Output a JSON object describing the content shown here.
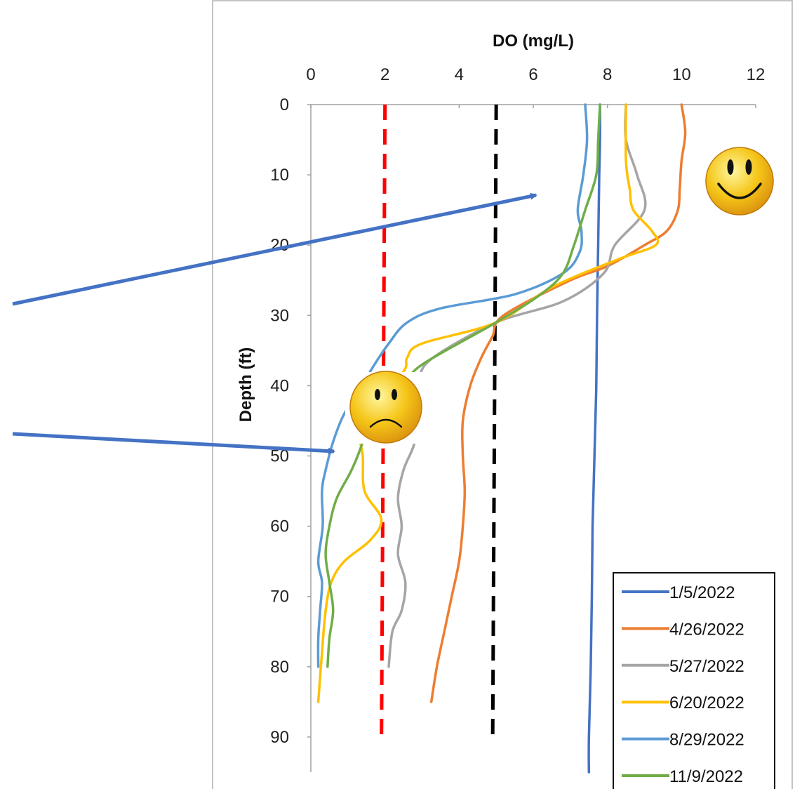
{
  "chart_data": {
    "type": "line",
    "xlabel": "DO (mg/L)",
    "ylabel": "Depth (ft)",
    "xlim": [
      0,
      12
    ],
    "ylim": [
      0,
      95
    ],
    "x_axis_position": "top",
    "y_axis_inverted": true,
    "xticks": [
      "0",
      "2",
      "4",
      "6",
      "8",
      "10",
      "12"
    ],
    "yticks": [
      "0",
      "10",
      "20",
      "30",
      "40",
      "50",
      "60",
      "70",
      "80",
      "90"
    ],
    "grid": false,
    "legend_position": "bottom-right",
    "reference_lines": [
      {
        "x": 2,
        "color": "#ff0000",
        "style": "dashed"
      },
      {
        "x": 5,
        "color": "#000000",
        "style": "dashed"
      }
    ],
    "series": [
      {
        "name": "1/5/2022",
        "color": "#4472c4",
        "points": [
          [
            7.8,
            0
          ],
          [
            7.8,
            5
          ],
          [
            7.78,
            10
          ],
          [
            7.75,
            20
          ],
          [
            7.72,
            30
          ],
          [
            7.7,
            40
          ],
          [
            7.65,
            50
          ],
          [
            7.6,
            60
          ],
          [
            7.58,
            70
          ],
          [
            7.55,
            80
          ],
          [
            7.5,
            90
          ],
          [
            7.5,
            95
          ]
        ]
      },
      {
        "name": "4/26/2022",
        "color": "#ed7d31",
        "points": [
          [
            10,
            0
          ],
          [
            10.1,
            4
          ],
          [
            10,
            8
          ],
          [
            9.95,
            12
          ],
          [
            9.9,
            15
          ],
          [
            9.6,
            18
          ],
          [
            9,
            20
          ],
          [
            8,
            23
          ],
          [
            7,
            25
          ],
          [
            5.2,
            30
          ],
          [
            4.9,
            33
          ],
          [
            4.6,
            36
          ],
          [
            4.3,
            40
          ],
          [
            4.1,
            45
          ],
          [
            4.1,
            50
          ],
          [
            4.15,
            55
          ],
          [
            4.1,
            60
          ],
          [
            4,
            65
          ],
          [
            3.8,
            70
          ],
          [
            3.6,
            75
          ],
          [
            3.4,
            80
          ],
          [
            3.25,
            85
          ]
        ]
      },
      {
        "name": "5/27/2022",
        "color": "#a5a5a5",
        "points": [
          [
            8.5,
            0
          ],
          [
            8.5,
            5
          ],
          [
            8.8,
            10
          ],
          [
            9,
            15
          ],
          [
            8.2,
            20
          ],
          [
            7.9,
            24
          ],
          [
            6.8,
            28
          ],
          [
            5,
            31
          ],
          [
            3.3,
            36
          ],
          [
            2.9,
            39
          ],
          [
            2.7,
            42
          ],
          [
            2.7,
            45
          ],
          [
            2.8,
            48
          ],
          [
            2.5,
            52
          ],
          [
            2.35,
            56
          ],
          [
            2.45,
            60
          ],
          [
            2.35,
            64
          ],
          [
            2.55,
            68
          ],
          [
            2.45,
            72
          ],
          [
            2.2,
            75
          ],
          [
            2.1,
            80
          ]
        ]
      },
      {
        "name": "6/20/2022",
        "color": "#ffc000",
        "points": [
          [
            8.5,
            0
          ],
          [
            8.5,
            8
          ],
          [
            8.6,
            12
          ],
          [
            8.7,
            15
          ],
          [
            9.2,
            18
          ],
          [
            9.3,
            20
          ],
          [
            8.3,
            22
          ],
          [
            6.5,
            26
          ],
          [
            5,
            31
          ],
          [
            3,
            34
          ],
          [
            2.6,
            36
          ],
          [
            2.5,
            38
          ],
          [
            1.7,
            43
          ],
          [
            1.3,
            46
          ],
          [
            1.4,
            50
          ],
          [
            1.45,
            55
          ],
          [
            1.9,
            59
          ],
          [
            1.6,
            62
          ],
          [
            0.9,
            65
          ],
          [
            0.55,
            68
          ],
          [
            0.4,
            72
          ],
          [
            0.3,
            78
          ],
          [
            0.2,
            85
          ]
        ]
      },
      {
        "name": "8/29/2022",
        "color": "#5b9bd5",
        "points": [
          [
            7.4,
            0
          ],
          [
            7.45,
            5
          ],
          [
            7.35,
            10
          ],
          [
            7.2,
            15
          ],
          [
            7.3,
            18
          ],
          [
            7.25,
            21
          ],
          [
            6.8,
            24
          ],
          [
            5.5,
            27
          ],
          [
            3.5,
            29
          ],
          [
            2.6,
            31
          ],
          [
            2.1,
            34
          ],
          [
            1.6,
            38
          ],
          [
            1.3,
            41
          ],
          [
            0.9,
            44
          ],
          [
            0.6,
            48
          ],
          [
            0.4,
            52
          ],
          [
            0.3,
            55
          ],
          [
            0.32,
            60
          ],
          [
            0.2,
            65
          ],
          [
            0.3,
            68
          ],
          [
            0.25,
            72
          ],
          [
            0.2,
            76
          ],
          [
            0.2,
            80
          ]
        ]
      },
      {
        "name": "11/9/2022",
        "color": "#70ad47",
        "points": [
          [
            7.8,
            0
          ],
          [
            7.75,
            5
          ],
          [
            7.7,
            10
          ],
          [
            7.4,
            15
          ],
          [
            7.1,
            20
          ],
          [
            6.8,
            24
          ],
          [
            6.2,
            27
          ],
          [
            5,
            31
          ],
          [
            3,
            37
          ],
          [
            2.5,
            40
          ],
          [
            1.6,
            44
          ],
          [
            1.4,
            48
          ],
          [
            1.1,
            52
          ],
          [
            0.7,
            56
          ],
          [
            0.5,
            60
          ],
          [
            0.4,
            64
          ],
          [
            0.5,
            68
          ],
          [
            0.6,
            72
          ],
          [
            0.5,
            76
          ],
          [
            0.45,
            80
          ]
        ]
      }
    ]
  }
}
